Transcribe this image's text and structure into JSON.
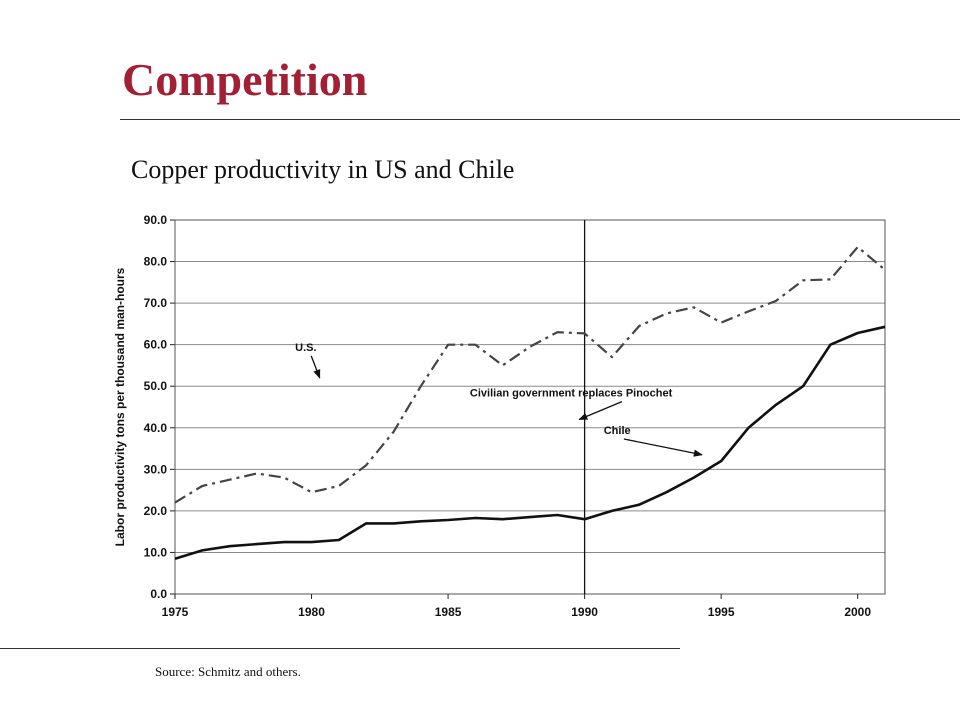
{
  "slide": {
    "title": "Competition",
    "subtitle": "Copper productivity in US and Chile",
    "source": "Source:  Schmitz and others.",
    "title_color": "#a31f34"
  },
  "chart_data": {
    "type": "line",
    "title": "",
    "xlabel": "",
    "ylabel": "Labor productivity tons per thousand man-hours",
    "xlim": [
      1975,
      2001
    ],
    "ylim": [
      0,
      90
    ],
    "x_ticks": [
      1975,
      1980,
      1985,
      1990,
      1995,
      2000
    ],
    "y_ticks": [
      "0.0",
      "10.0",
      "20.0",
      "30.0",
      "40.0",
      "50.0",
      "60.0",
      "70.0",
      "80.0",
      "90.0"
    ],
    "grid": "horizontal",
    "legend": "none",
    "series": [
      {
        "name": "U.S.",
        "style": "dash-dot",
        "color": "#444444",
        "x": [
          1975,
          1976,
          1977,
          1978,
          1979,
          1980,
          1981,
          1982,
          1983,
          1984,
          1985,
          1986,
          1987,
          1988,
          1989,
          1990,
          1991,
          1992,
          1993,
          1994,
          1995,
          1996,
          1997,
          1998,
          1999,
          2000,
          2001
        ],
        "y": [
          22,
          26,
          27.5,
          29,
          28,
          24.5,
          26,
          31,
          39,
          50,
          60,
          60,
          55,
          59.5,
          63,
          62.7,
          57,
          64.5,
          67.5,
          69,
          65.3,
          68,
          70.5,
          75.5,
          75.7,
          83.5,
          78
        ]
      },
      {
        "name": "Chile",
        "style": "solid",
        "color": "#111111",
        "x": [
          1975,
          1976,
          1977,
          1978,
          1979,
          1980,
          1981,
          1982,
          1983,
          1984,
          1985,
          1986,
          1987,
          1988,
          1989,
          1990,
          1991,
          1992,
          1993,
          1994,
          1995,
          1996,
          1997,
          1998,
          1999,
          2000,
          2001
        ],
        "y": [
          8.5,
          10.5,
          11.5,
          12,
          12.5,
          12.5,
          13,
          17,
          17,
          17.5,
          17.8,
          18.3,
          18,
          18.5,
          19,
          18,
          20,
          21.5,
          24.5,
          28,
          32,
          40,
          45.5,
          50,
          60,
          62.8,
          64.3
        ]
      }
    ],
    "annotations": [
      {
        "text": "U.S.",
        "at": [
          1979.4,
          58.5
        ],
        "arrow_to": [
          1980.3,
          52
        ]
      },
      {
        "text": "Civilian government replaces Pinochet",
        "at": [
          1985.8,
          47.5
        ],
        "arrow_to": [
          1989.8,
          42
        ]
      },
      {
        "text": "Chile",
        "at": [
          1990.7,
          38.5
        ],
        "arrow_to": [
          1994.3,
          33.5
        ]
      }
    ],
    "vertical_line": {
      "x": 1990
    }
  }
}
